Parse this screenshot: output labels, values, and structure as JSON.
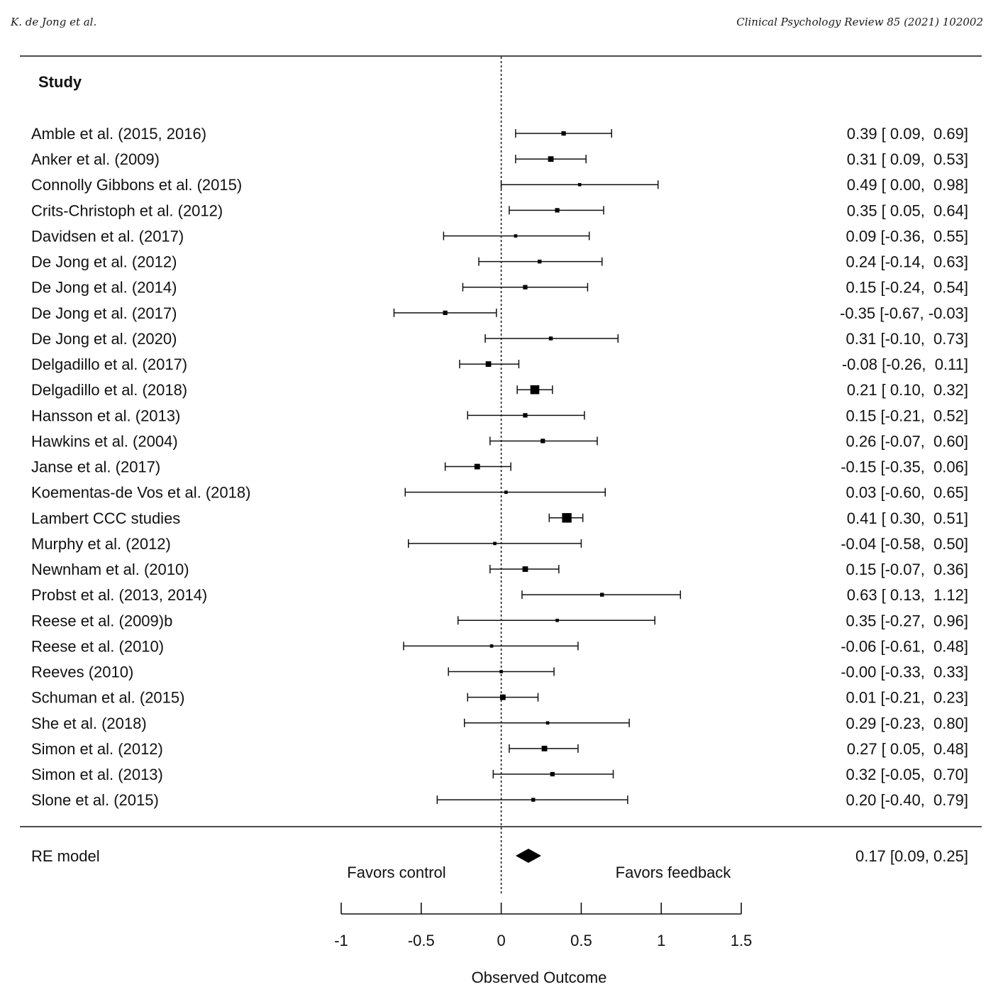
{
  "page_header": {
    "left": "K. de Jong et al.",
    "right": "Clinical Psychology Review 85 (2021) 102002"
  },
  "chart_data": {
    "type": "forest",
    "column_header": "Study",
    "xlabel": "Observed Outcome",
    "xlim": [
      -1,
      1.5
    ],
    "xticks": [
      -1,
      -0.5,
      0,
      0.5,
      1,
      1.5
    ],
    "xtick_labels": [
      "-1",
      "-0.5",
      "0",
      "0.5",
      "1",
      "1.5"
    ],
    "reference_line": 0,
    "annotations": {
      "left": "Favors control",
      "right": "Favors feedback"
    },
    "studies": [
      {
        "label": "Amble et al. (2015, 2016)",
        "est": 0.39,
        "lo": 0.09,
        "hi": 0.69,
        "ci_text": "0.39 [ 0.09,  0.69]",
        "weight": 2
      },
      {
        "label": "Anker et al. (2009)",
        "est": 0.31,
        "lo": 0.09,
        "hi": 0.53,
        "ci_text": "0.31 [ 0.09,  0.53]",
        "weight": 3
      },
      {
        "label": "Connolly Gibbons et al. (2015)",
        "est": 0.49,
        "lo": 0.0,
        "hi": 0.98,
        "ci_text": "0.49 [ 0.00,  0.98]",
        "weight": 1
      },
      {
        "label": "Crits-Christoph et al. (2012)",
        "est": 0.35,
        "lo": 0.05,
        "hi": 0.64,
        "ci_text": "0.35 [ 0.05,  0.64]",
        "weight": 2
      },
      {
        "label": "Davidsen et al. (2017)",
        "est": 0.09,
        "lo": -0.36,
        "hi": 0.55,
        "ci_text": "0.09 [-0.36,  0.55]",
        "weight": 1
      },
      {
        "label": "De Jong et al. (2012)",
        "est": 0.24,
        "lo": -0.14,
        "hi": 0.63,
        "ci_text": "0.24 [-0.14,  0.63]",
        "weight": 1.5
      },
      {
        "label": "De Jong et al. (2014)",
        "est": 0.15,
        "lo": -0.24,
        "hi": 0.54,
        "ci_text": "0.15 [-0.24,  0.54]",
        "weight": 2
      },
      {
        "label": "De Jong et al. (2017)",
        "est": -0.35,
        "lo": -0.67,
        "hi": -0.03,
        "ci_text": "-0.35 [-0.67, -0.03]",
        "weight": 2
      },
      {
        "label": "De Jong et al. (2020)",
        "est": 0.31,
        "lo": -0.1,
        "hi": 0.73,
        "ci_text": "0.31 [-0.10,  0.73]",
        "weight": 1.5
      },
      {
        "label": "Delgadillo et al. (2017)",
        "est": -0.08,
        "lo": -0.26,
        "hi": 0.11,
        "ci_text": "-0.08 [-0.26,  0.11]",
        "weight": 3
      },
      {
        "label": "Delgadillo et al. (2018)",
        "est": 0.21,
        "lo": 0.1,
        "hi": 0.32,
        "ci_text": "0.21 [ 0.10,  0.32]",
        "weight": 6
      },
      {
        "label": "Hansson et al. (2013)",
        "est": 0.15,
        "lo": -0.21,
        "hi": 0.52,
        "ci_text": "0.15 [-0.21,  0.52]",
        "weight": 2
      },
      {
        "label": "Hawkins et al. (2004)",
        "est": 0.26,
        "lo": -0.07,
        "hi": 0.6,
        "ci_text": "0.26 [-0.07,  0.60]",
        "weight": 2
      },
      {
        "label": "Janse et al. (2017)",
        "est": -0.15,
        "lo": -0.35,
        "hi": 0.06,
        "ci_text": "-0.15 [-0.35,  0.06]",
        "weight": 3
      },
      {
        "label": "Koementas-de Vos et al. (2018)",
        "est": 0.03,
        "lo": -0.6,
        "hi": 0.65,
        "ci_text": "0.03 [-0.60,  0.65]",
        "weight": 1
      },
      {
        "label": "Lambert CCC studies",
        "est": 0.41,
        "lo": 0.3,
        "hi": 0.51,
        "ci_text": "0.41 [ 0.30,  0.51]",
        "weight": 6.5
      },
      {
        "label": "Murphy et al. (2012)",
        "est": -0.04,
        "lo": -0.58,
        "hi": 0.5,
        "ci_text": "-0.04 [-0.58,  0.50]",
        "weight": 1
      },
      {
        "label": "Newnham et al. (2010)",
        "est": 0.15,
        "lo": -0.07,
        "hi": 0.36,
        "ci_text": "0.15 [-0.07,  0.36]",
        "weight": 3
      },
      {
        "label": "Probst et al. (2013, 2014)",
        "est": 0.63,
        "lo": 0.13,
        "hi": 1.12,
        "ci_text": "0.63 [ 0.13,  1.12]",
        "weight": 1.5
      },
      {
        "label": "Reese et al. (2009)b",
        "est": 0.35,
        "lo": -0.27,
        "hi": 0.96,
        "ci_text": "0.35 [-0.27,  0.96]",
        "weight": 1
      },
      {
        "label": "Reese et al. (2010)",
        "est": -0.06,
        "lo": -0.61,
        "hi": 0.48,
        "ci_text": "-0.06 [-0.61,  0.48]",
        "weight": 1
      },
      {
        "label": "Reeves (2010)",
        "est": -0.0,
        "lo": -0.33,
        "hi": 0.33,
        "ci_text": "-0.00 [-0.33,  0.33]",
        "weight": 1
      },
      {
        "label": "Schuman et al. (2015)",
        "est": 0.01,
        "lo": -0.21,
        "hi": 0.23,
        "ci_text": "0.01 [-0.21,  0.23]",
        "weight": 3
      },
      {
        "label": "She et al. (2018)",
        "est": 0.29,
        "lo": -0.23,
        "hi": 0.8,
        "ci_text": "0.29 [-0.23,  0.80]",
        "weight": 1
      },
      {
        "label": "Simon et al. (2012)",
        "est": 0.27,
        "lo": 0.05,
        "hi": 0.48,
        "ci_text": "0.27 [ 0.05,  0.48]",
        "weight": 3
      },
      {
        "label": "Simon et al. (2013)",
        "est": 0.32,
        "lo": -0.05,
        "hi": 0.7,
        "ci_text": "0.32 [-0.05,  0.70]",
        "weight": 2
      },
      {
        "label": "Slone et al. (2015)",
        "est": 0.2,
        "lo": -0.4,
        "hi": 0.79,
        "ci_text": "0.20 [-0.40,  0.79]",
        "weight": 1.5
      }
    ],
    "summary": {
      "label": "RE model",
      "est": 0.17,
      "lo": 0.09,
      "hi": 0.25,
      "ci_text": "0.17 [0.09, 0.25]"
    }
  }
}
